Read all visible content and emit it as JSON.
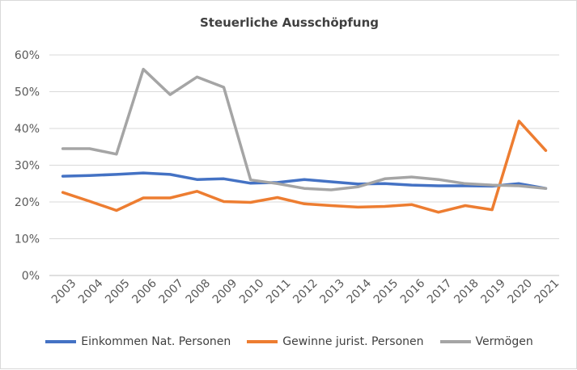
{
  "chart_data": {
    "type": "line",
    "title": "Steuerliche Ausschöpfung",
    "xlabel": "",
    "ylabel": "",
    "ylim": [
      0,
      0.6
    ],
    "yticks": [
      "0%",
      "10%",
      "20%",
      "30%",
      "40%",
      "50%",
      "60%"
    ],
    "grid": true,
    "legend_position": "bottom",
    "categories": [
      "2003",
      "2004",
      "2005",
      "2006",
      "2007",
      "2008",
      "2009",
      "2010",
      "2011",
      "2012",
      "2013",
      "2014",
      "2015",
      "2016",
      "2017",
      "2018",
      "2019",
      "2020",
      "2021"
    ],
    "series": [
      {
        "name": "Einkommen Nat. Personen",
        "color": "#4472C4",
        "values": [
          0.27,
          0.272,
          0.275,
          0.279,
          0.275,
          0.261,
          0.263,
          0.251,
          0.253,
          0.261,
          0.255,
          0.249,
          0.25,
          0.246,
          0.244,
          0.244,
          0.243,
          0.25,
          0.237
        ]
      },
      {
        "name": "Gewinne jurist. Personen",
        "color": "#ED7D31",
        "values": [
          0.226,
          0.202,
          0.177,
          0.211,
          0.211,
          0.229,
          0.201,
          0.199,
          0.212,
          0.195,
          0.19,
          0.186,
          0.188,
          0.193,
          0.172,
          0.19,
          0.179,
          0.42,
          0.34
        ]
      },
      {
        "name": "Vermögen",
        "color": "#A5A5A5",
        "values": [
          0.345,
          0.345,
          0.33,
          0.561,
          0.492,
          0.54,
          0.512,
          0.26,
          0.25,
          0.237,
          0.233,
          0.241,
          0.263,
          0.268,
          0.261,
          0.25,
          0.246,
          0.244,
          0.237
        ]
      }
    ]
  }
}
